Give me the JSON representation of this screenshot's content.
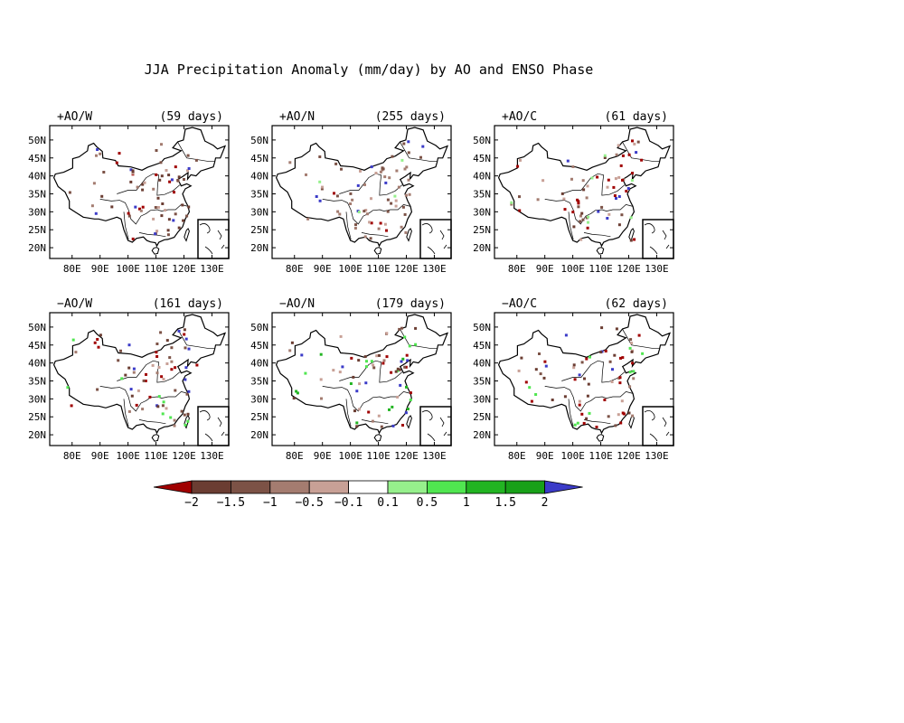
{
  "title": "JJA Precipitation Anomaly (mm/day) by AO and ENSO Phase",
  "panels": [
    {
      "label": "+AO/W",
      "days": "(59 days)"
    },
    {
      "label": "+AO/N",
      "days": "(255 days)"
    },
    {
      "label": "+AO/C",
      "days": "(61 days)"
    },
    {
      "label": "−AO/W",
      "days": "(161 days)"
    },
    {
      "label": "−AO/N",
      "days": "(179 days)"
    },
    {
      "label": "−AO/C",
      "days": "(62 days)"
    }
  ],
  "lat_ticks": [
    "50N",
    "45N",
    "40N",
    "35N",
    "30N",
    "25N",
    "20N"
  ],
  "lon_ticks": [
    "80E",
    "90E",
    "100E",
    "110E",
    "120E",
    "130E"
  ],
  "map_extent": {
    "lon": [
      72,
      136
    ],
    "lat": [
      17,
      54
    ]
  },
  "colorbar": {
    "labels": [
      "−2",
      "−1.5",
      "−1",
      "−0.5",
      "−0.1",
      "0.1",
      "0.5",
      "1",
      "1.5",
      "2"
    ],
    "colors": [
      "#a00000",
      "#6b3d32",
      "#7c5246",
      "#a47c70",
      "#c8a096",
      "#ffffff",
      "#96f08c",
      "#50e650",
      "#22b422",
      "#18a018",
      "#3b3bc8"
    ]
  }
}
